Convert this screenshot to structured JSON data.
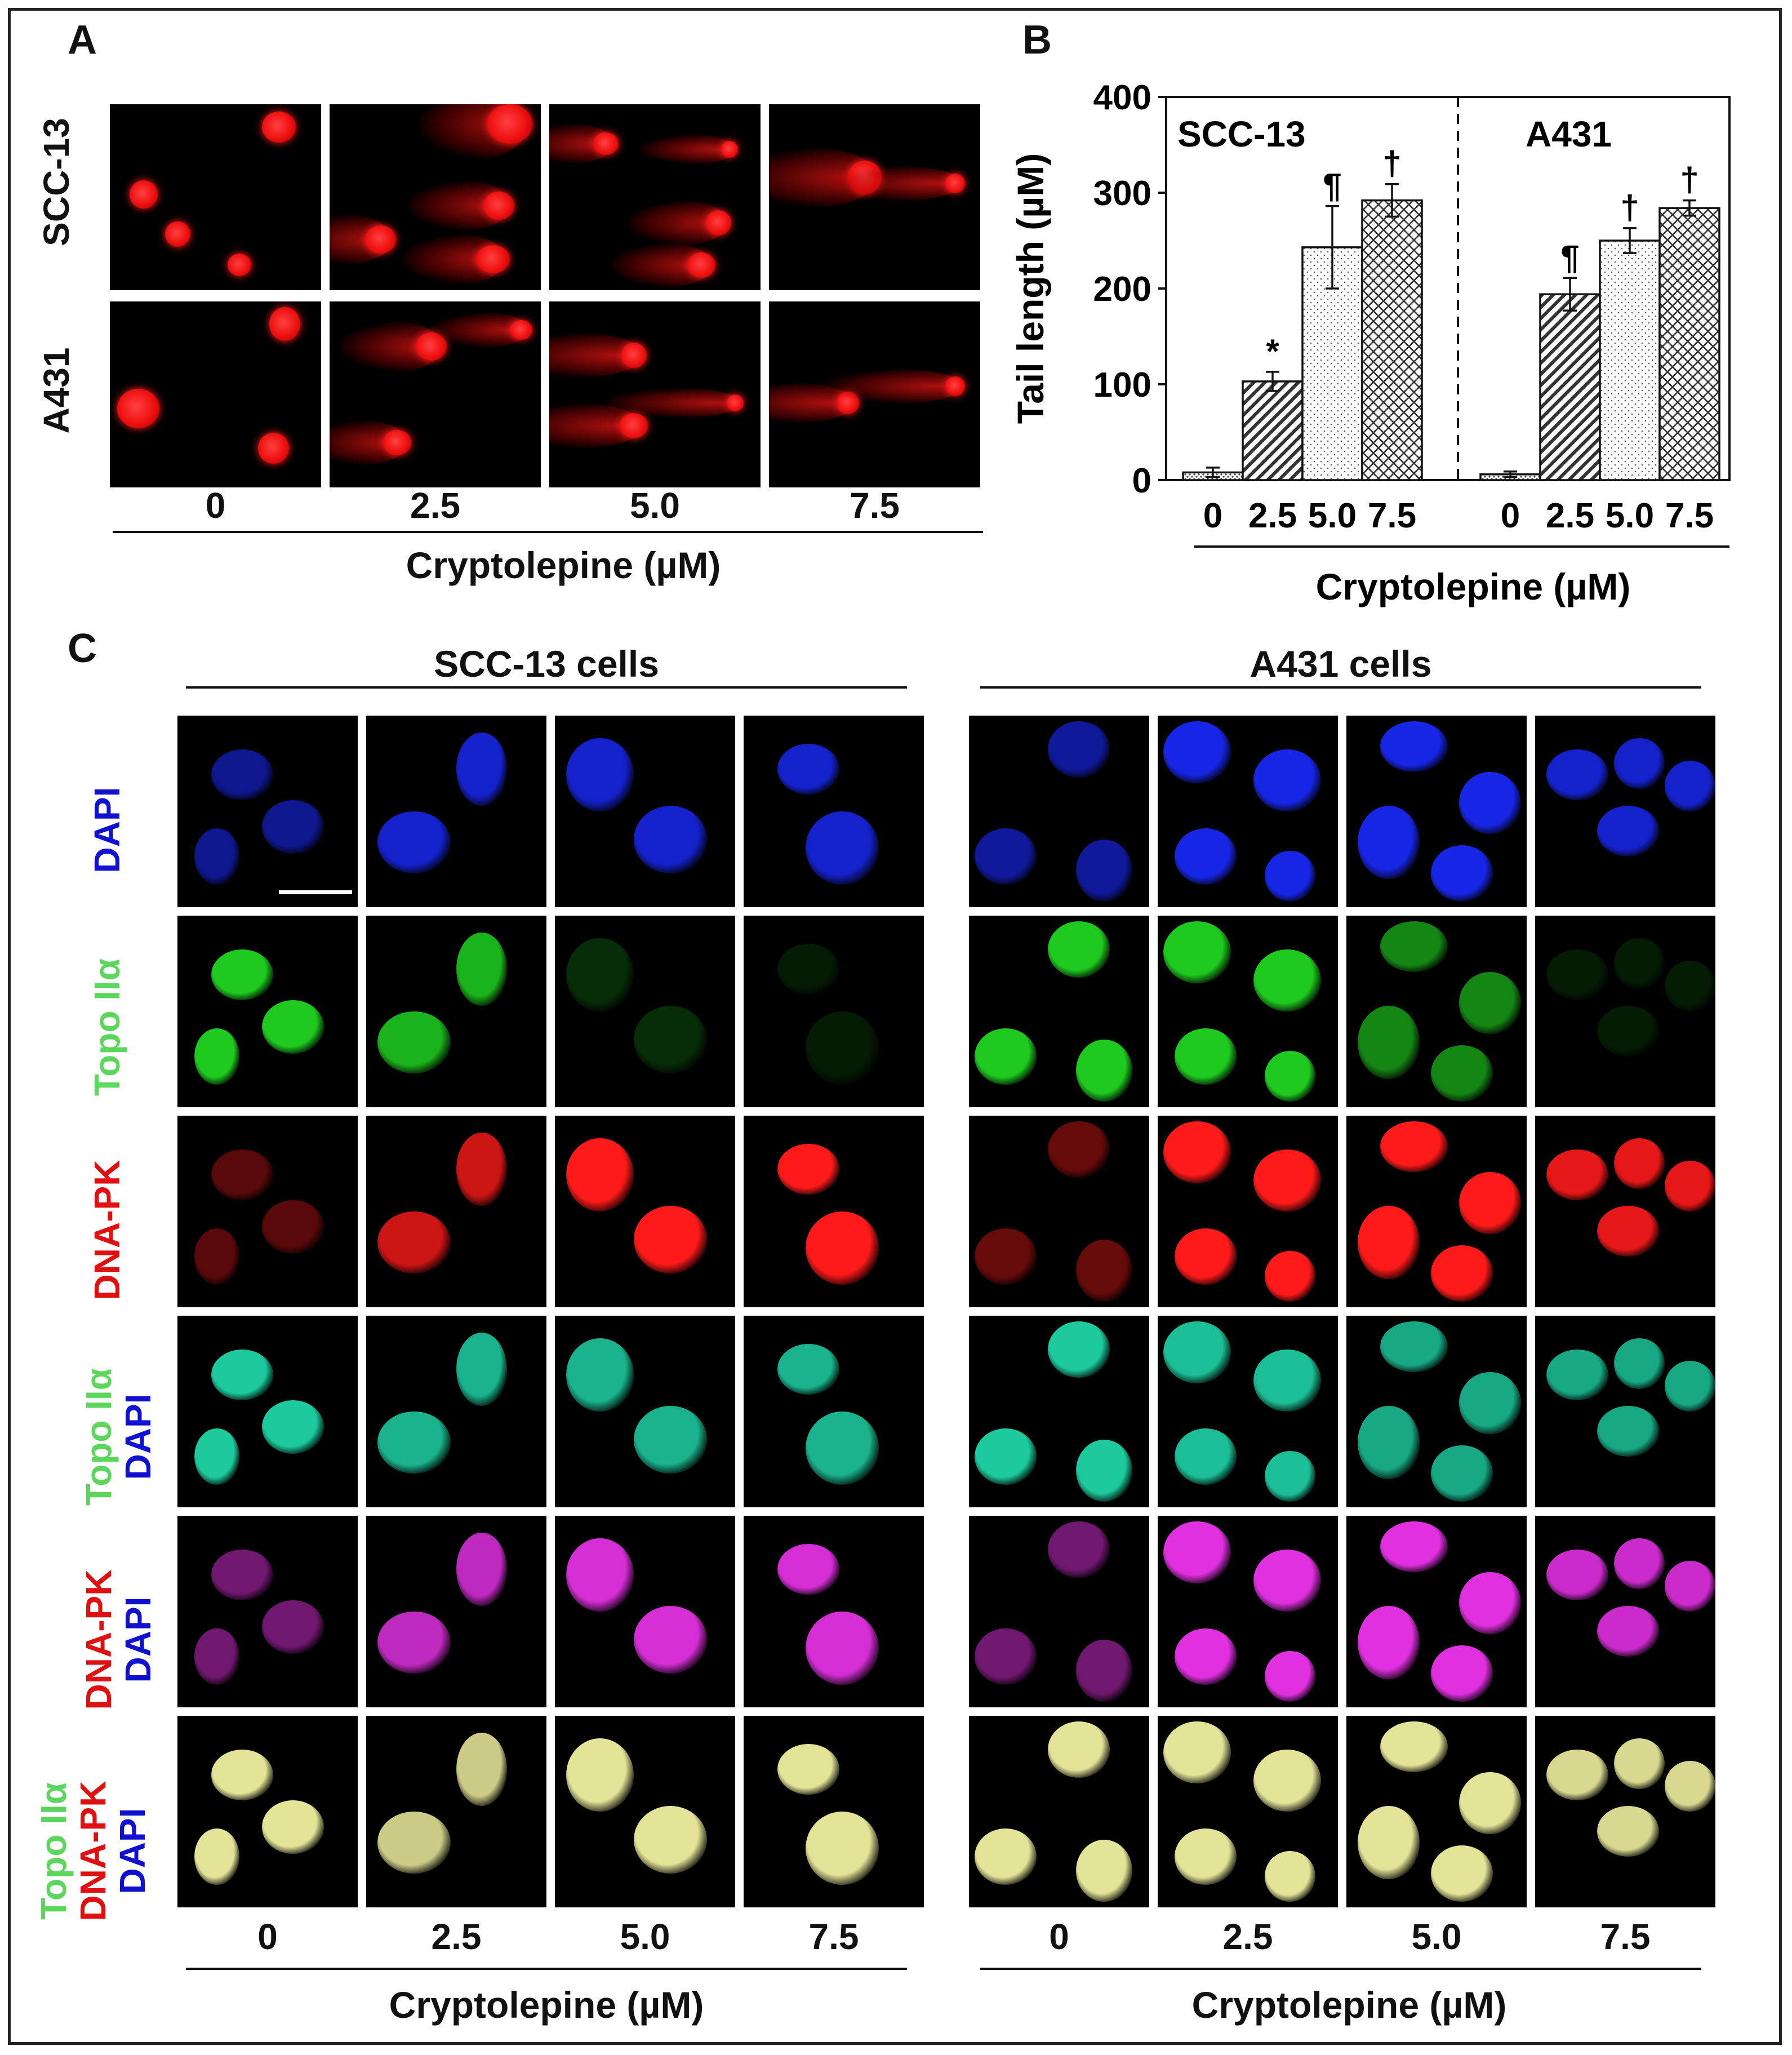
{
  "panels": {
    "a": "A",
    "b": "B",
    "c": "C"
  },
  "panel_a": {
    "rows": [
      "SCC-13",
      "A431"
    ],
    "concentrations": [
      "0",
      "2.5",
      "5.0",
      "7.5"
    ],
    "xlabel": "Cryptolepine (µM)"
  },
  "chart_data": {
    "type": "bar",
    "ylabel": "Tail length (µM)",
    "xlabel": "Cryptolepine (µM)",
    "ylim": [
      0,
      400
    ],
    "yticks": [
      "0",
      "100",
      "200",
      "300",
      "400"
    ],
    "groups": [
      {
        "name": "SCC-13",
        "categories": [
          "0",
          "2.5",
          "5.0",
          "7.5"
        ],
        "values": [
          8,
          103,
          243,
          292
        ],
        "errors": [
          5,
          10,
          43,
          17
        ],
        "annotations": [
          "",
          "*",
          "¶",
          "†"
        ]
      },
      {
        "name": "A431",
        "categories": [
          "0",
          "2.5",
          "5.0",
          "7.5"
        ],
        "values": [
          6,
          194,
          250,
          284
        ],
        "errors": [
          3,
          17,
          13,
          8
        ],
        "annotations": [
          "",
          "¶",
          "†",
          "†"
        ]
      }
    ],
    "patterns": [
      "dense-dots",
      "diagonal",
      "dots",
      "crosshatch"
    ],
    "divider": "dashed"
  },
  "panel_c": {
    "groups": [
      "SCC-13 cells",
      "A431 cells"
    ],
    "stain_labels": {
      "dapi": "DAPI",
      "topo": "Topo IIα",
      "dnapk": "DNA-PK"
    },
    "concentrations": [
      "0",
      "2.5",
      "5.0",
      "7.5"
    ],
    "xlabel": "Cryptolepine (µM)",
    "colors": {
      "dapi": "#1a2aff",
      "topo": "#22e022",
      "dnapk": "#ff1a1a",
      "topo_dapi": "#20e0b0",
      "dnapk_dapi": "#e030e0",
      "merge": "#f0f0a0"
    }
  }
}
